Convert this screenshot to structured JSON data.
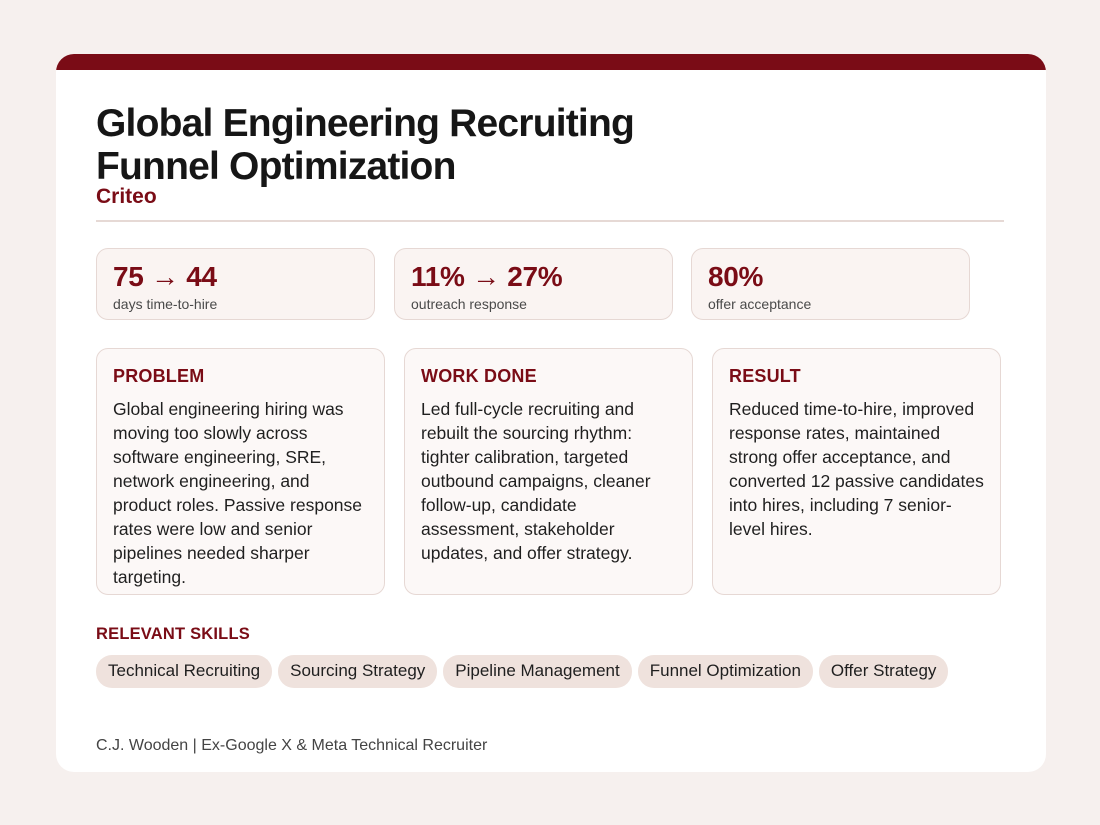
{
  "title_line1": "Global Engineering Recruiting",
  "title_line2": "Funnel Optimization",
  "company": "Criteo",
  "metrics": [
    {
      "value": "75 → 44",
      "label": "days time-to-hire"
    },
    {
      "value": "11% → 27%",
      "label": "outreach response"
    },
    {
      "value": "80%",
      "label": "offer acceptance"
    }
  ],
  "panels": [
    {
      "heading": "PROBLEM",
      "body": "Global engineering hiring was moving too slowly across software engineering, SRE, network engineering, and product roles. Passive response rates were low and senior pipelines needed sharper targeting."
    },
    {
      "heading": "WORK DONE",
      "body": "Led full-cycle recruiting and rebuilt the sourcing rhythm: tighter calibration, targeted outbound campaigns, cleaner follow-up, candidate assessment, stakeholder updates, and offer strategy."
    },
    {
      "heading": "RESULT",
      "body": "Reduced time-to-hire, improved response rates, maintained strong offer acceptance, and converted 12 passive candidates into hires, including 7 senior-level hires."
    }
  ],
  "skills_heading": "RELEVANT SKILLS",
  "skills": [
    "Technical Recruiting",
    "Sourcing Strategy",
    "Pipeline Management",
    "Funnel Optimization",
    "Offer Strategy"
  ],
  "footer": "C.J. Wooden | Ex-Google X & Meta Technical Recruiter",
  "colors": {
    "accent": "#7a0c16",
    "background": "#f6f0ee",
    "chip": "#efe2dd"
  }
}
